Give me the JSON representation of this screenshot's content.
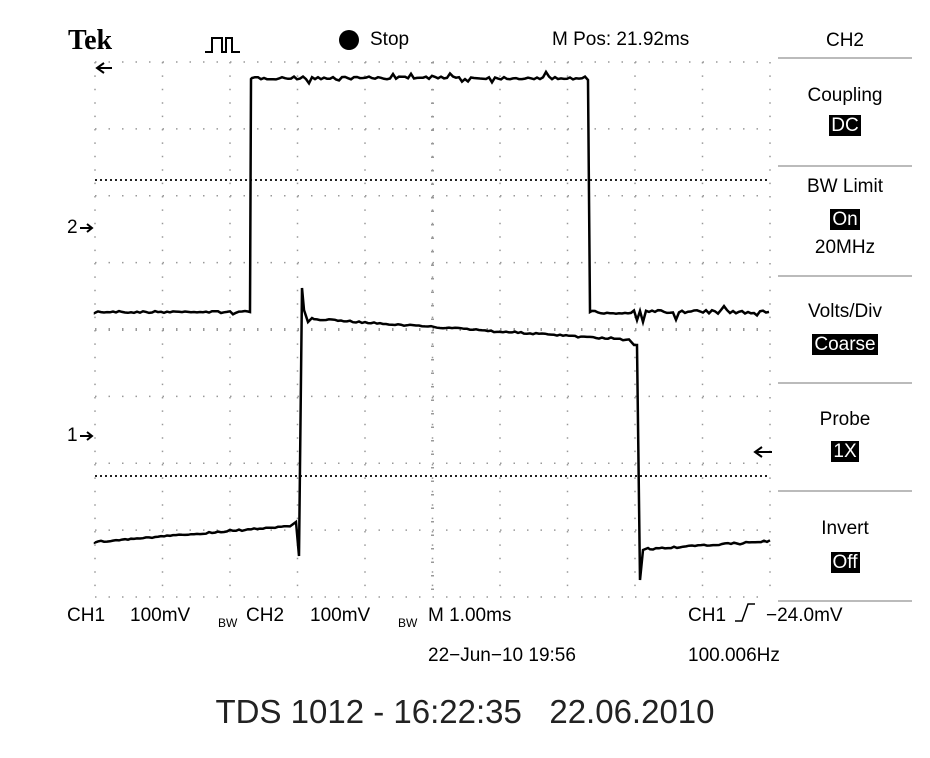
{
  "header": {
    "brand": "Tek",
    "status": "Stop",
    "position": "M Pos: 21.92ms"
  },
  "menu": {
    "title": "CH2",
    "items": [
      {
        "label": "Coupling",
        "value": "DC"
      },
      {
        "label": "BW Limit",
        "value": "On",
        "extra": "20MHz"
      },
      {
        "label": "Volts/Div",
        "value": "Coarse"
      },
      {
        "label": "Probe",
        "value": "1X"
      },
      {
        "label": "Invert",
        "value": "Off"
      }
    ]
  },
  "markers": {
    "ch2": "2",
    "ch1": "1"
  },
  "footer": {
    "ch1": "CH1",
    "ch1_scale": "100mV",
    "ch1_bw": "BW",
    "ch2": "CH2",
    "ch2_scale": "100mV",
    "ch2_bw": "BW",
    "timebase": "M 1.00ms",
    "trigger_source": "CH1",
    "trigger_level": "−24.0mV",
    "date": "22−Jun−10 19:56",
    "frequency": "100.006Hz"
  },
  "caption": "TDS 1012 - 16:22:35   22.06.2010"
}
